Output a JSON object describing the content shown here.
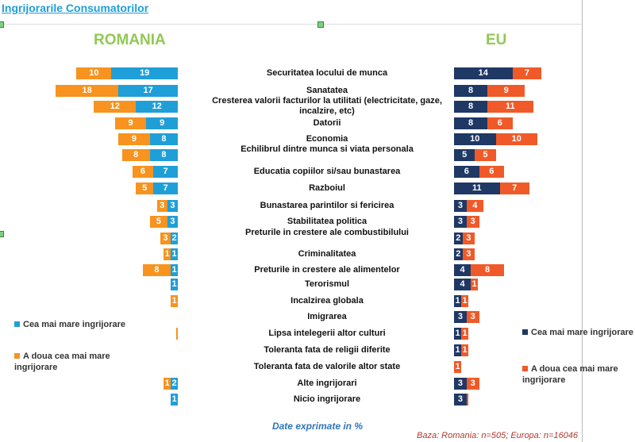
{
  "title": "Ingrijorarile Consumatorilor",
  "chart_data": {
    "type": "bar",
    "orientation": "horizontal-stacked",
    "categories": [
      "Securitatea locului de munca",
      "Sanatatea",
      "Cresterea valorii facturilor la utilitati (electricitate, gaze, incalzire, etc)",
      "Datorii",
      "Economia",
      "Echilibrul dintre munca si viata personala",
      "Educatia copiilor si/sau bunastarea",
      "Razboiul",
      "Bunastarea parintilor si fericirea",
      "Stabilitatea politica",
      "Preturile in crestere ale combustibilului",
      "Criminalitatea",
      "Preturile in crestere ale alimentelor",
      "Terorismul",
      "Incalzirea globala",
      "Imigrarea",
      "Lipsa intelegerii altor culturi",
      "Toleranta fata de religii diferite",
      "Toleranta fata de valorile altor state",
      "Alte ingrijorari",
      "Nicio ingrijorare"
    ],
    "panels": [
      {
        "title": "ROMANIA",
        "series": [
          {
            "name": "Cea mai mare ingrijorare",
            "color": "#1f9fd8",
            "values": [
              19,
              17,
              12,
              9,
              8,
              8,
              7,
              7,
              3,
              3,
              2,
              1,
              1,
              1,
              0,
              0,
              0,
              0,
              0,
              2,
              1
            ]
          },
          {
            "name": "A doua cea mai mare ingrijorare",
            "color": "#f7931e",
            "values": [
              10,
              18,
              12,
              9,
              9,
              8,
              6,
              5,
              3,
              5,
              3,
              1,
              8,
              0,
              1,
              0,
              0.5,
              0,
              0,
              1,
              0
            ]
          }
        ]
      },
      {
        "title": "EU",
        "series": [
          {
            "name": "Cea mai mare ingrijorare",
            "color": "#1f3864",
            "values": [
              14,
              8,
              8,
              8,
              10,
              5,
              6,
              11,
              3,
              3,
              2,
              2,
              4,
              4,
              1,
              3,
              1,
              1,
              0,
              3,
              3
            ]
          },
          {
            "name": "A doua cea mai mare ingrijorare",
            "color": "#f05a28",
            "values": [
              7,
              9,
              11,
              6,
              10,
              5,
              6,
              7,
              4,
              3,
              3,
              3,
              8,
              1,
              1,
              3,
              1,
              1,
              1,
              3,
              0.5
            ]
          }
        ]
      }
    ]
  },
  "note": "Date exprimate in %",
  "base": "Baza: Romania: n=505; Europa: n=16046"
}
